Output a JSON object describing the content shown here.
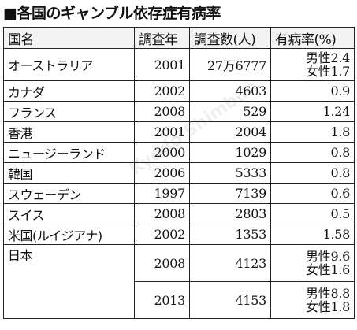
{
  "title": "■各国のギャンブル依存症有病率",
  "headers": {
    "country": "国名",
    "year": "調査年",
    "count": "調査数(人)",
    "rate": "有病率(%)"
  },
  "rows": [
    {
      "country": "オーストラリア",
      "year": "2001",
      "count": "27万6777",
      "rate1": "男性2.4",
      "rate2": "女性1.7"
    },
    {
      "country": "カナダ",
      "year": "2002",
      "count": "4603",
      "rate1": "0.9",
      "rate2": ""
    },
    {
      "country": "フランス",
      "year": "2008",
      "count": "529",
      "rate1": "1.24",
      "rate2": ""
    },
    {
      "country": "香港",
      "year": "2001",
      "count": "2004",
      "rate1": "1.8",
      "rate2": ""
    },
    {
      "country": "ニュージーランド",
      "year": "2000",
      "count": "1029",
      "rate1": "0.8",
      "rate2": ""
    },
    {
      "country": "韓国",
      "year": "2006",
      "count": "5333",
      "rate1": "0.8",
      "rate2": ""
    },
    {
      "country": "スウェーデン",
      "year": "1997",
      "count": "7139",
      "rate1": "0.6",
      "rate2": ""
    },
    {
      "country": "スイス",
      "year": "2008",
      "count": "2803",
      "rate1": "0.5",
      "rate2": ""
    },
    {
      "country": "米国(ルイジアナ)",
      "year": "2002",
      "count": "1353",
      "rate1": "1.58",
      "rate2": ""
    }
  ],
  "japan": {
    "country": "日本",
    "rows": [
      {
        "year": "2008",
        "count": "4123",
        "rate1": "男性9.6",
        "rate2": "女性1.6"
      },
      {
        "year": "2013",
        "count": "4153",
        "rate1": "男性8.8",
        "rate2": "女性1.8"
      }
    ]
  },
  "watermark": "Kyodo Shimbun"
}
